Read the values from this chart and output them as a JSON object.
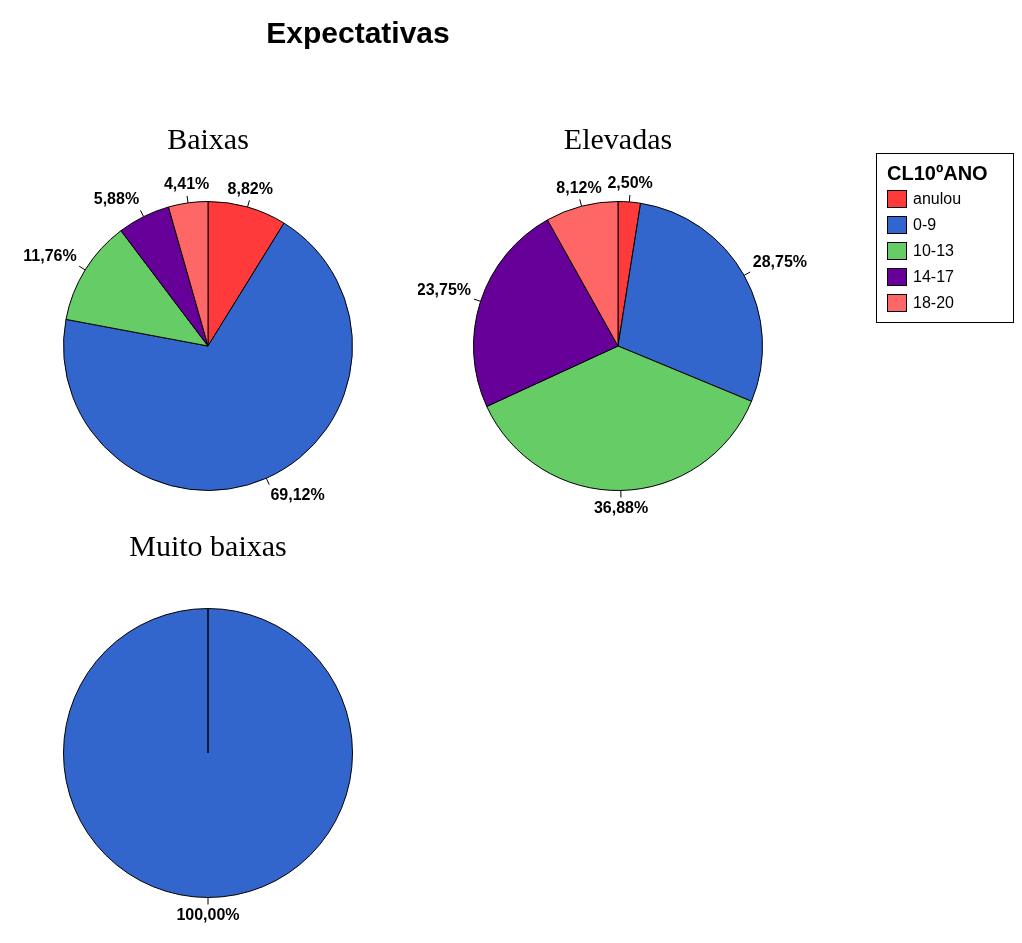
{
  "chart_data": [
    {
      "type": "pie",
      "title": "Expectativas",
      "subtitle": "Baixas",
      "categories": [
        "anulou",
        "0-9",
        "10-13",
        "14-17",
        "18-20"
      ],
      "values": [
        8.82,
        69.12,
        11.76,
        5.88,
        4.41
      ],
      "colors": [
        "#ff3a3a",
        "#3366cc",
        "#66cc66",
        "#660099",
        "#ff6666"
      ],
      "value_labels": [
        "8,82%",
        "69,12%",
        "11,76%",
        "5,88%",
        "4,41%"
      ],
      "legend": "right",
      "legend_title": "CL10ºANO"
    },
    {
      "type": "pie",
      "subtitle": "Elevadas",
      "categories": [
        null,
        null,
        null,
        null,
        null
      ],
      "values": [
        2.5,
        28.75,
        36.88,
        23.75,
        8.12
      ],
      "colors": [
        "#ff3a3a",
        "#3366cc",
        "#66cc66",
        "#660099",
        "#ff6666"
      ],
      "value_labels": [
        "2,50%",
        "28,75%",
        "36,88%",
        "23,75%",
        "8,12%"
      ],
      "legend": false
    },
    {
      "type": "pie",
      "subtitle": "Muito baixas",
      "categories": [
        null
      ],
      "values": [
        100
      ],
      "colors": [
        "#3366cc"
      ],
      "value_labels": [
        "100,00%"
      ],
      "legend": false
    }
  ]
}
